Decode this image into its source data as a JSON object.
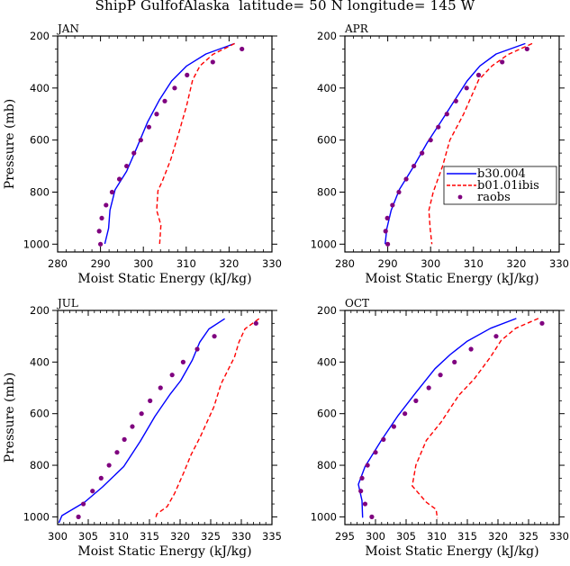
{
  "title": "ShipP GulfofAlaska  latitude= 50 N longitude= 145 W",
  "colors": {
    "b30": "#0000ff",
    "b01": "#ff0000",
    "raobs": "#7f007f"
  },
  "legend": {
    "position": "inside APR panel, lower-right",
    "entries": [
      {
        "label": "b30.004",
        "style": "solid line",
        "color": "#0000ff"
      },
      {
        "label": "b01.01ibis",
        "style": "dashed line",
        "color": "#ff0000"
      },
      {
        "label": "raobs",
        "style": "marker",
        "color": "#7f007f"
      }
    ]
  },
  "chart_data": [
    {
      "type": "line",
      "title": "JAN",
      "xlabel": "Moist Static Energy (kJ/kg)",
      "ylabel": "Pressure (mb)",
      "xlim": [
        280,
        330
      ],
      "ylim": [
        1030,
        200
      ],
      "xticks": [
        280,
        290,
        300,
        310,
        320,
        330
      ],
      "yticks": [
        200,
        400,
        600,
        800,
        1000
      ],
      "show_ylabel": true,
      "series": [
        {
          "name": "b30.004",
          "x": [
            321.3,
            314.6,
            310.1,
            306.6,
            303.8,
            301.0,
            298.5,
            296.1,
            293.4,
            292.2,
            291.9,
            291.0
          ],
          "y": [
            229,
            269,
            315,
            373,
            444,
            530,
            628,
            720,
            791,
            870,
            939,
            999
          ]
        },
        {
          "name": "b01.01ibis",
          "x": [
            321.3,
            316.2,
            313.2,
            311.5,
            310.1,
            308.3,
            306.4,
            304.5,
            303.4,
            303.1,
            304.1,
            303.8
          ],
          "y": [
            229,
            271,
            315,
            369,
            467,
            571,
            674,
            755,
            795,
            870,
            927,
            999
          ]
        },
        {
          "name": "raobs",
          "x": [
            323.0,
            316.2,
            310.2,
            307.3,
            305.0,
            303.1,
            301.3,
            299.4,
            297.8,
            296.1,
            294.4,
            292.7,
            291.3,
            290.3,
            289.7,
            290.0
          ],
          "y": [
            250,
            300,
            350,
            400,
            450,
            500,
            550,
            600,
            650,
            700,
            750,
            800,
            850,
            900,
            950,
            1000
          ]
        }
      ]
    },
    {
      "type": "line",
      "title": "APR",
      "xlabel": "Moist Static Energy (kJ/kg)",
      "ylabel": "",
      "xlim": [
        280,
        330
      ],
      "ylim": [
        1030,
        200
      ],
      "xticks": [
        280,
        290,
        300,
        310,
        320,
        330
      ],
      "yticks": [
        200,
        400,
        600,
        800,
        1000
      ],
      "show_ylabel": false,
      "series": [
        {
          "name": "b30.004",
          "x": [
            322.1,
            315.3,
            311.5,
            308.5,
            305.5,
            302.4,
            299.2,
            296.1,
            292.7,
            290.8,
            289.8,
            289.4
          ],
          "y": [
            229,
            269,
            315,
            373,
            450,
            530,
            610,
            700,
            790,
            870,
            940,
            1000
          ]
        },
        {
          "name": "b01.01ibis",
          "x": [
            323.7,
            318.1,
            314.3,
            311.2,
            307.7,
            304.5,
            302.8,
            300.6,
            299.6,
            299.9,
            300.3
          ],
          "y": [
            229,
            271,
            315,
            369,
            500,
            600,
            700,
            800,
            870,
            940,
            1000
          ]
        },
        {
          "name": "raobs",
          "x": [
            322.5,
            316.7,
            311.2,
            308.4,
            305.9,
            303.8,
            301.8,
            300.0,
            298.0,
            296.1,
            294.3,
            292.6,
            291.1,
            289.9,
            289.5,
            290.0
          ],
          "y": [
            250,
            300,
            350,
            400,
            450,
            500,
            550,
            600,
            650,
            700,
            750,
            800,
            850,
            900,
            950,
            1000
          ]
        }
      ]
    },
    {
      "type": "line",
      "title": "JUL",
      "xlabel": "Moist Static Energy (kJ/kg)",
      "ylabel": "Pressure (mb)",
      "xlim": [
        300,
        335
      ],
      "ylim": [
        1030,
        200
      ],
      "xticks": [
        300,
        305,
        310,
        315,
        320,
        325,
        330,
        335
      ],
      "yticks": [
        200,
        400,
        600,
        800,
        1000
      ],
      "show_ylabel": true,
      "series": [
        {
          "name": "b30.004",
          "x": [
            327.3,
            324.7,
            323.2,
            322.0,
            320.1,
            318.4,
            315.9,
            313.5,
            310.8,
            307.3,
            304.4,
            300.7,
            300.2
          ],
          "y": [
            232,
            272,
            323,
            392,
            472,
            524,
            610,
            707,
            805,
            885,
            943,
            995,
            1023
          ]
        },
        {
          "name": "b01.01ibis",
          "x": [
            332.9,
            330.6,
            329.6,
            328.9,
            326.7,
            325.5,
            323.3,
            321.8,
            320.6,
            319.1,
            317.9,
            316.2,
            316.0
          ],
          "y": [
            232,
            271,
            323,
            380,
            484,
            575,
            690,
            759,
            828,
            909,
            960,
            989,
            1006
          ]
        },
        {
          "name": "raobs",
          "x": [
            332.4,
            325.6,
            322.8,
            320.5,
            318.7,
            316.8,
            315.1,
            313.7,
            312.2,
            310.9,
            309.7,
            308.4,
            307.1,
            305.7,
            304.2,
            303.4
          ],
          "y": [
            250,
            300,
            350,
            400,
            450,
            500,
            550,
            600,
            650,
            700,
            750,
            800,
            850,
            900,
            950,
            1000
          ]
        }
      ]
    },
    {
      "type": "line",
      "title": "OCT",
      "xlabel": "Moist Static Energy (kJ/kg)",
      "ylabel": "",
      "xlim": [
        295,
        330
      ],
      "ylim": [
        1030,
        200
      ],
      "xticks": [
        295,
        300,
        305,
        310,
        315,
        320,
        325,
        330
      ],
      "yticks": [
        200,
        400,
        600,
        800,
        1000
      ],
      "show_ylabel": false,
      "series": [
        {
          "name": "b30.004",
          "x": [
            323.0,
            318.8,
            315.0,
            312.2,
            309.7,
            306.6,
            303.6,
            301.0,
            298.3,
            297.2,
            297.8,
            297.9
          ],
          "y": [
            231,
            269,
            319,
            371,
            426,
            518,
            610,
            702,
            805,
            874,
            937,
            1003
          ]
        },
        {
          "name": "b01.01ibis",
          "x": [
            326.6,
            322.9,
            320.5,
            318.8,
            316.1,
            313.6,
            310.7,
            308.3,
            306.6,
            306.0,
            308.3,
            309.9,
            310.1
          ],
          "y": [
            231,
            269,
            317,
            380,
            466,
            529,
            633,
            704,
            799,
            880,
            943,
            971,
            1006
          ]
        },
        {
          "name": "raobs",
          "x": [
            327.2,
            319.7,
            315.6,
            312.9,
            310.6,
            308.7,
            306.6,
            304.8,
            303.0,
            301.3,
            300.0,
            298.7,
            297.8,
            297.6,
            298.3,
            299.4
          ],
          "y": [
            250,
            300,
            350,
            400,
            450,
            500,
            550,
            600,
            650,
            700,
            750,
            800,
            850,
            900,
            950,
            1000
          ]
        }
      ]
    }
  ]
}
